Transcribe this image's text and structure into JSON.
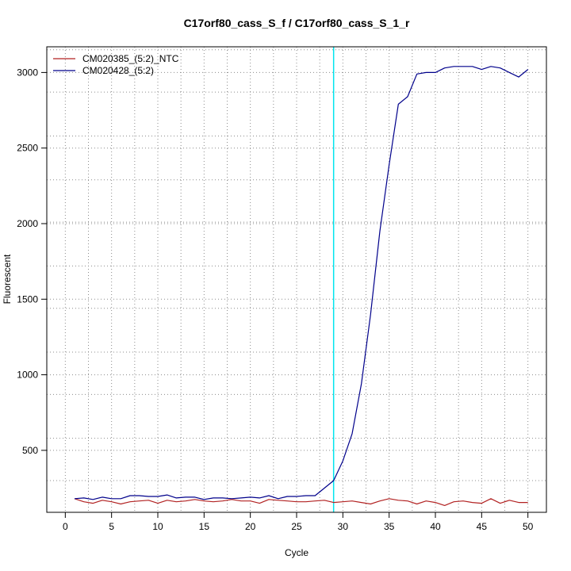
{
  "chart_data": {
    "type": "line",
    "title": "C17orf80_cass_S_f / C17orf80_cass_S_1_r",
    "xlabel": "Cycle",
    "ylabel": "Fluorescent",
    "xlim": [
      -2.0,
      52.0
    ],
    "ylim": [
      90,
      3170
    ],
    "x_ticks": [
      0,
      5,
      10,
      15,
      20,
      25,
      30,
      35,
      40,
      45,
      50
    ],
    "y_ticks": [
      500,
      1000,
      1500,
      2000,
      2500,
      3000
    ],
    "grid_x": [
      2.5,
      7.5,
      12.5,
      17.5,
      22.5,
      27.5,
      32.5,
      37.5,
      42.5,
      47.5
    ],
    "grid_y": [
      300,
      580,
      870,
      1150,
      1440,
      1720,
      2010,
      2290,
      2580,
      2870,
      3150
    ],
    "threshold_cycle": 29,
    "threshold_color": "#00e5ee",
    "legend_position": "top-left",
    "series": [
      {
        "name": "CM020385_(5:2)_NTC",
        "color": "#b22222",
        "x": [
          1,
          2,
          3,
          4,
          5,
          6,
          7,
          8,
          9,
          10,
          11,
          12,
          13,
          14,
          15,
          16,
          17,
          18,
          19,
          20,
          21,
          22,
          23,
          24,
          25,
          26,
          27,
          28,
          29,
          30,
          31,
          32,
          33,
          34,
          35,
          36,
          37,
          38,
          39,
          40,
          41,
          42,
          43,
          44,
          45,
          46,
          47,
          48,
          49,
          50
        ],
        "values": [
          180,
          160,
          150,
          170,
          160,
          145,
          160,
          165,
          170,
          150,
          170,
          160,
          165,
          175,
          165,
          160,
          165,
          175,
          165,
          165,
          150,
          175,
          170,
          165,
          160,
          160,
          165,
          170,
          155,
          160,
          165,
          155,
          145,
          165,
          180,
          170,
          165,
          145,
          165,
          155,
          135,
          160,
          165,
          155,
          150,
          180,
          150,
          170,
          155,
          155
        ]
      },
      {
        "name": "CM020428_(5:2)",
        "color": "#00008b",
        "x": [
          1,
          2,
          3,
          4,
          5,
          6,
          7,
          8,
          9,
          10,
          11,
          12,
          13,
          14,
          15,
          16,
          17,
          18,
          19,
          20,
          21,
          22,
          23,
          24,
          25,
          26,
          27,
          28,
          29,
          30,
          31,
          32,
          33,
          34,
          35,
          36,
          37,
          38,
          39,
          40,
          41,
          42,
          43,
          44,
          45,
          46,
          47,
          48,
          49,
          50
        ],
        "values": [
          180,
          185,
          175,
          190,
          180,
          180,
          200,
          200,
          195,
          195,
          205,
          185,
          190,
          190,
          175,
          185,
          185,
          180,
          185,
          190,
          185,
          200,
          180,
          195,
          195,
          200,
          200,
          250,
          300,
          430,
          610,
          940,
          1400,
          1950,
          2390,
          2790,
          2840,
          2990,
          3000,
          3000,
          3030,
          3040,
          3040,
          3040,
          3020,
          3040,
          3030,
          3000,
          2970,
          3020
        ]
      }
    ]
  }
}
